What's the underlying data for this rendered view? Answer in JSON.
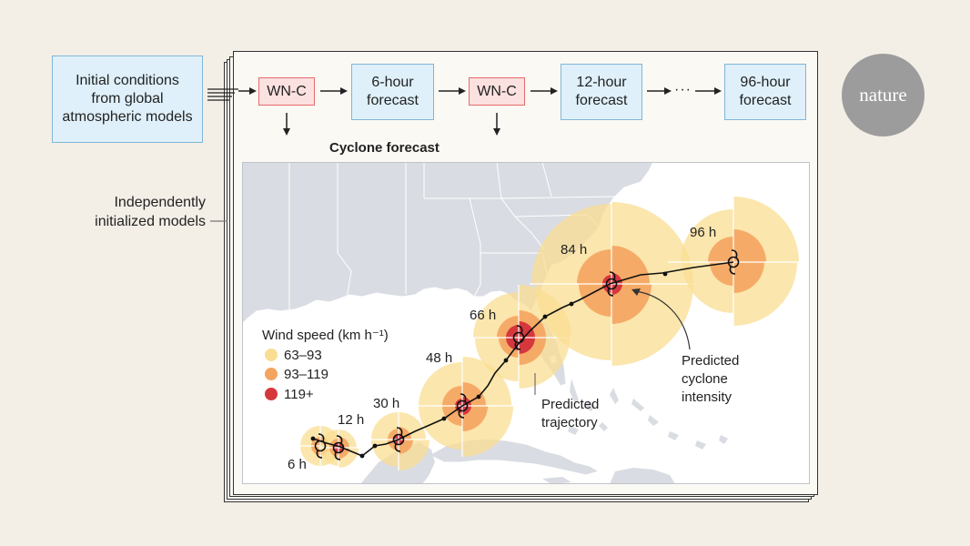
{
  "flow": {
    "initial_conditions": "Initial conditions from global atmospheric models",
    "model_label": "WN-C",
    "forecast_6h": "6-hour forecast",
    "forecast_12h": "12-hour forecast",
    "ellipsis": "···",
    "forecast_96h": "96-hour forecast",
    "independent_label": "Independently initialized models",
    "map_title": "Cyclone forecast"
  },
  "legend": {
    "title": "Wind speed (km h⁻¹)",
    "items": [
      {
        "label": "63–93",
        "color": "#f9dd92"
      },
      {
        "label": "93–119",
        "color": "#f4a45f"
      },
      {
        "label": "119+",
        "color": "#d6373d"
      }
    ]
  },
  "track": {
    "time_labels": [
      "6 h",
      "12 h",
      "30 h",
      "48 h",
      "66 h",
      "84 h",
      "96 h"
    ]
  },
  "annotations": {
    "trajectory": "Predicted trajectory",
    "intensity": "Predicted cyclone intensity"
  },
  "brand": {
    "logo_text": "nature"
  },
  "colors": {
    "land": "#d9dce2",
    "sea": "#ffffff",
    "box_fill": "#dff0fa",
    "model_fill": "#fbe1df",
    "yellow": "#f9dd92",
    "orange": "#f4a45f",
    "red": "#d6373d"
  }
}
